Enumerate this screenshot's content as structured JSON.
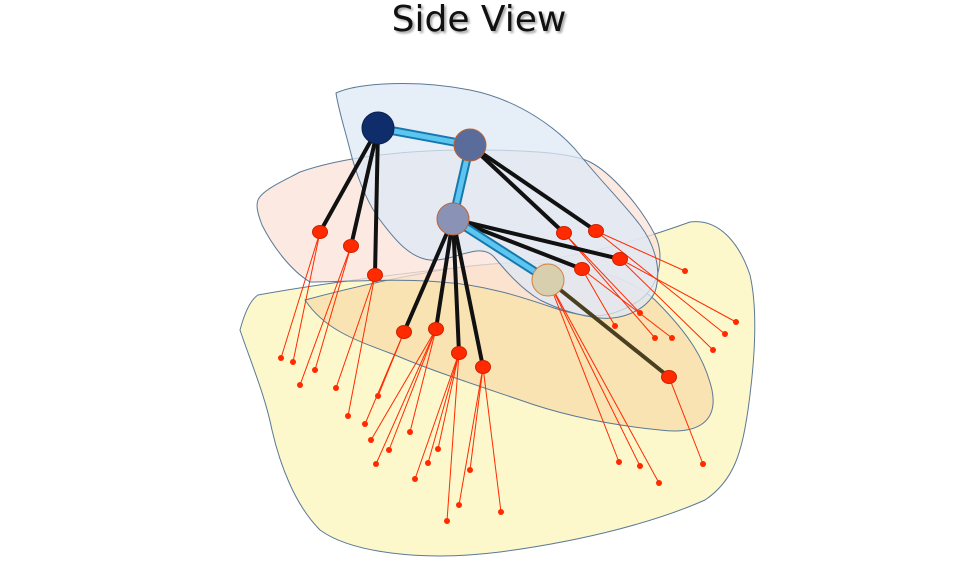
{
  "title": "Side View",
  "colors": {
    "region_blue_fill": "#dde8f5",
    "region_pink_fill": "#fbe3d8",
    "region_yellow_fill": "#fdf7cc",
    "region_orange_fill": "#f8dfae",
    "region_outline": "#5b7a96",
    "node_dark_navy": "#0f2d6b",
    "node_slate_blue": "#5a6c9a",
    "node_gray_blue": "#8a93b6",
    "node_beige": "#d7cfae",
    "connector_blue": "#2fb0e6",
    "stem_black": "#111111",
    "tip_red": "#ff2a00",
    "fiber_red": "#ff2a00"
  }
}
